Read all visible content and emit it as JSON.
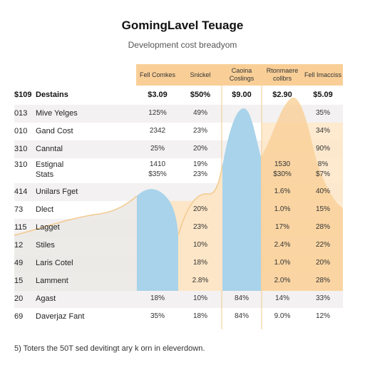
{
  "title": "GomingLavel Teuage",
  "subtitle": "Development cost breadyom",
  "footnote": "5) Toters the 50T sed devitingt ary k orn in eleverdown.",
  "colors": {
    "orange_band": "#f9cf97",
    "orange_light": "#fde6c7",
    "blue_band": "#a8d3ea",
    "row_alt": "#f3f1f1",
    "area_grey": "#ebe9e6"
  },
  "chart_data": {
    "type": "table",
    "columns": [
      {
        "label": "Fell Comkes"
      },
      {
        "label": "Snickel"
      },
      {
        "label": "Caoina Coslings"
      },
      {
        "label": "Rtonmaere collbrs"
      },
      {
        "label": "Fell Imacciss"
      }
    ],
    "header_row": {
      "code": "$109",
      "label": "Destains",
      "values": [
        "$3.09",
        "$50%",
        "$9.00",
        "$2.90",
        "$5.09"
      ]
    },
    "rows": [
      {
        "code": "013",
        "label": "Mive Yelges",
        "values": [
          "125%",
          "49%",
          "",
          "",
          "35%"
        ]
      },
      {
        "code": "010",
        "label": "Gand Cost",
        "values": [
          "2342",
          "23%",
          "",
          "",
          "34%"
        ]
      },
      {
        "code": "310",
        "label": "Canntal",
        "values": [
          "25%",
          "20%",
          "",
          "",
          "90%"
        ]
      },
      {
        "code": "310",
        "label": "Estignal",
        "label2": "Stats",
        "values": [
          "1410",
          "19%",
          "",
          "1530",
          "8%"
        ],
        "values2": [
          "$35%",
          "23%",
          "",
          "$30%",
          "$7%"
        ]
      },
      {
        "code": "414",
        "label": "Unilars Fget",
        "values": [
          "",
          "",
          "",
          "1.6%",
          "40%"
        ]
      },
      {
        "code": "73",
        "label": "Dlect",
        "values": [
          "",
          "20%",
          "",
          "1.0%",
          "15%"
        ]
      },
      {
        "code": "115",
        "label": "Lagget",
        "values": [
          "",
          "23%",
          "",
          "17%",
          "28%"
        ]
      },
      {
        "code": "12",
        "label": "Stiles",
        "values": [
          "",
          "10%",
          "",
          "2.4%",
          "22%"
        ]
      },
      {
        "code": "49",
        "label": "Laris Cotel",
        "values": [
          "",
          "18%",
          "",
          "1.0%",
          "20%"
        ]
      },
      {
        "code": "15",
        "label": "Lamment",
        "values": [
          "",
          "2.8%",
          "",
          "2.0%",
          "28%"
        ]
      },
      {
        "code": "20",
        "label": "Agast",
        "values": [
          "18%",
          "10%",
          "84%",
          "14%",
          "33%"
        ]
      },
      {
        "code": "69",
        "label": "Daverjaz Fant",
        "values": [
          "35%",
          "18%",
          "84%",
          "9.0%",
          "12%"
        ]
      }
    ]
  }
}
